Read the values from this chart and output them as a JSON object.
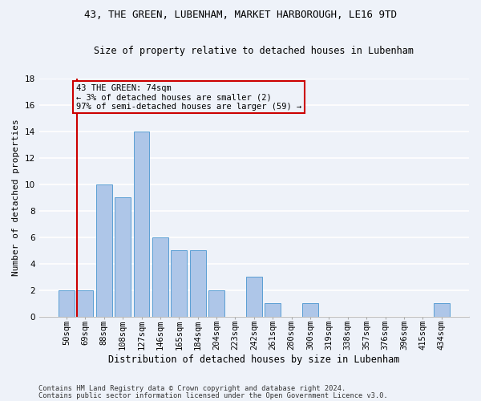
{
  "title1": "43, THE GREEN, LUBENHAM, MARKET HARBOROUGH, LE16 9TD",
  "title2": "Size of property relative to detached houses in Lubenham",
  "xlabel": "Distribution of detached houses by size in Lubenham",
  "ylabel": "Number of detached properties",
  "categories": [
    "50sqm",
    "69sqm",
    "88sqm",
    "108sqm",
    "127sqm",
    "146sqm",
    "165sqm",
    "184sqm",
    "204sqm",
    "223sqm",
    "242sqm",
    "261sqm",
    "280sqm",
    "300sqm",
    "319sqm",
    "338sqm",
    "357sqm",
    "376sqm",
    "396sqm",
    "415sqm",
    "434sqm"
  ],
  "values": [
    2,
    2,
    10,
    9,
    14,
    6,
    5,
    5,
    2,
    0,
    3,
    1,
    0,
    1,
    0,
    0,
    0,
    0,
    0,
    0,
    1
  ],
  "bar_color": "#aec6e8",
  "bar_edge_color": "#5a9fd4",
  "annotation_box_text": "43 THE GREEN: 74sqm\n← 3% of detached houses are smaller (2)\n97% of semi-detached houses are larger (59) →",
  "ylim": [
    0,
    18
  ],
  "yticks": [
    0,
    2,
    4,
    6,
    8,
    10,
    12,
    14,
    16,
    18
  ],
  "footer1": "Contains HM Land Registry data © Crown copyright and database right 2024.",
  "footer2": "Contains public sector information licensed under the Open Government Licence v3.0.",
  "background_color": "#eef2f9",
  "grid_color": "#ffffff",
  "red_line_color": "#cc0000",
  "box_edge_color": "#cc0000",
  "title1_fontsize": 9,
  "title2_fontsize": 8.5,
  "ylabel_fontsize": 8,
  "xlabel_fontsize": 8.5,
  "tick_fontsize": 7.5,
  "footer_fontsize": 6.2,
  "annot_fontsize": 7.5
}
